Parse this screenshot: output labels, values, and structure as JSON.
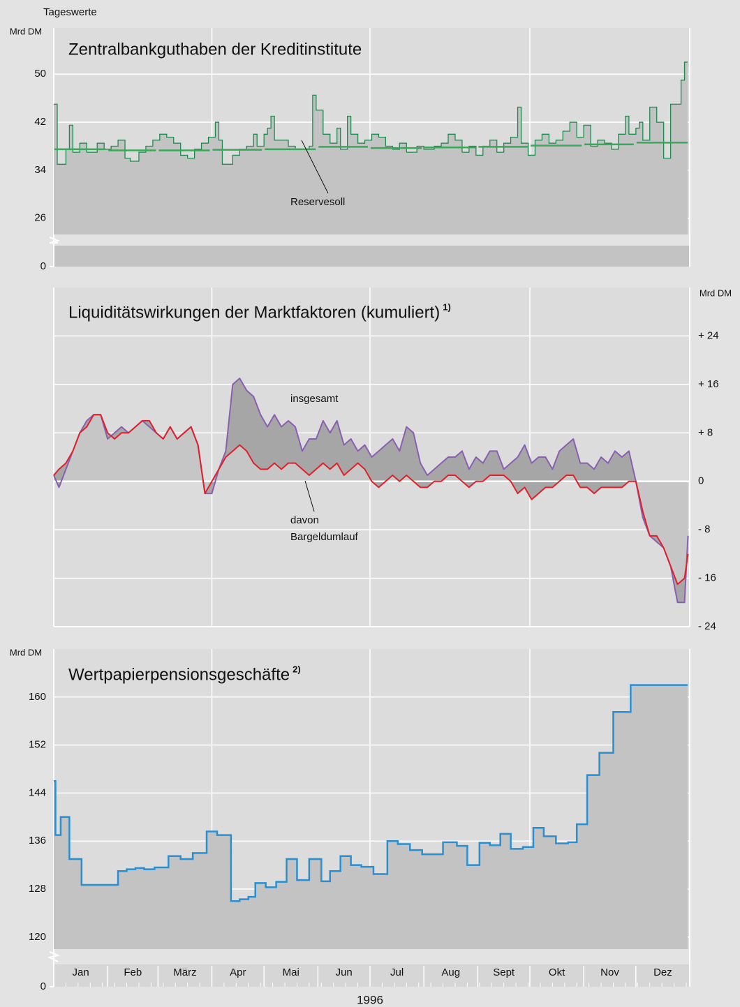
{
  "header": "Tageswerte",
  "chart_data": [
    {
      "type": "line",
      "step": true,
      "fill": true,
      "axis_break": true,
      "title": "Zentralbankguthaben der Kreditinstitute",
      "ylabel": "Mrd DM",
      "xlim": [
        1,
        367
      ],
      "ylim": [
        23.3,
        57.7
      ],
      "yticks": [
        0,
        26,
        34,
        42,
        50
      ],
      "grid": true,
      "series": [
        {
          "color": "#1f8a50",
          "x": [
            1,
            3,
            8,
            10,
            12,
            16,
            20,
            26,
            30,
            34,
            38,
            42,
            45,
            50,
            54,
            58,
            62,
            66,
            70,
            74,
            78,
            82,
            86,
            90,
            94,
            96,
            98,
            104,
            108,
            112,
            116,
            118,
            122,
            124,
            126,
            128,
            132,
            136,
            140,
            144,
            148,
            150,
            152,
            156,
            160,
            164,
            166,
            170,
            172,
            176,
            180,
            184,
            188,
            192,
            196,
            200,
            204,
            210,
            214,
            220,
            224,
            228,
            232,
            236,
            240,
            244,
            248,
            252,
            256,
            260,
            264,
            268,
            270,
            274,
            278,
            282,
            286,
            290,
            294,
            298,
            302,
            306,
            310,
            314,
            318,
            322,
            326,
            330,
            332,
            336,
            338,
            340,
            344,
            348,
            352,
            356,
            362,
            364
          ],
          "values": [
            45,
            35,
            37.5,
            41.5,
            37,
            38.5,
            37,
            38.5,
            37.5,
            38,
            39,
            36,
            35.5,
            37,
            38,
            39,
            40,
            39.5,
            38.5,
            36.5,
            36,
            37.5,
            38.5,
            39.5,
            42,
            39,
            35,
            36.5,
            37.5,
            38,
            40,
            38,
            40,
            41,
            43,
            39,
            39,
            38,
            37.5,
            37.5,
            38,
            46.5,
            44,
            40,
            38.5,
            41,
            37.5,
            43,
            40,
            38.5,
            39,
            40,
            39.5,
            38,
            37.5,
            38.5,
            37,
            38,
            37.5,
            38,
            38.5,
            40,
            39,
            37,
            38,
            36.5,
            38,
            39,
            37,
            38.5,
            39.5,
            44.5,
            38.5,
            36.5,
            39,
            40,
            38.5,
            39,
            40.5,
            42,
            39.5,
            41.5,
            38,
            39,
            38.5,
            37.5,
            40,
            43,
            40,
            41,
            42,
            39,
            44.5,
            42,
            36,
            45,
            49,
            52
          ]
        },
        {
          "name": "Reservesoll",
          "color": "#3aa85a",
          "style": "segments",
          "x": [
            1,
            32,
            61,
            92,
            122,
            153,
            183,
            214,
            245,
            275,
            306,
            336
          ],
          "values": [
            37.5,
            37.3,
            37.3,
            37.4,
            37.5,
            37.9,
            37.7,
            37.8,
            37.9,
            38.1,
            38.3,
            38.6
          ]
        }
      ]
    },
    {
      "type": "line",
      "fill": true,
      "title": "Liquiditätswirkungen der Marktfaktoren (kumuliert)",
      "title_note": "1)",
      "ylabel": "Mrd DM",
      "annotations": [
        "davon",
        "Bargeldumlauf"
      ],
      "xlim": [
        1,
        367
      ],
      "ylim": [
        -24,
        32
      ],
      "yticks": [
        {
          "value": -24,
          "label": "- 24"
        },
        {
          "value": -16,
          "label": "- 16"
        },
        {
          "value": -8,
          "label": "- 8"
        },
        0,
        {
          "value": 8,
          "label": "+ 8"
        },
        {
          "value": 16,
          "label": "+ 16"
        },
        {
          "value": 24,
          "label": "+ 24"
        }
      ],
      "grid": true,
      "series": [
        {
          "name": "insgesamt",
          "color": "#8a5fb0",
          "x": [
            1,
            4,
            8,
            12,
            16,
            20,
            24,
            28,
            32,
            36,
            40,
            44,
            48,
            52,
            56,
            60,
            64,
            68,
            72,
            76,
            80,
            84,
            88,
            92,
            96,
            100,
            104,
            108,
            112,
            116,
            120,
            124,
            128,
            132,
            136,
            140,
            144,
            148,
            152,
            156,
            160,
            164,
            168,
            172,
            176,
            180,
            184,
            188,
            192,
            196,
            200,
            204,
            208,
            212,
            216,
            220,
            224,
            228,
            232,
            236,
            240,
            244,
            248,
            252,
            256,
            260,
            264,
            268,
            272,
            276,
            280,
            284,
            288,
            292,
            296,
            300,
            304,
            308,
            312,
            316,
            320,
            324,
            328,
            332,
            336,
            340,
            344,
            348,
            352,
            356,
            360,
            364,
            366
          ],
          "values": [
            1,
            -1,
            2,
            5,
            8,
            10,
            11,
            11,
            7,
            8,
            9,
            8,
            9,
            10,
            9,
            8,
            7,
            9,
            7,
            8,
            9,
            6,
            -2,
            -2,
            2,
            5,
            16,
            17,
            15,
            14,
            11,
            9,
            11,
            9,
            10,
            9,
            5,
            7,
            7,
            10,
            8,
            10,
            6,
            7,
            5,
            6,
            4,
            5,
            6,
            7,
            5,
            9,
            8,
            3,
            1,
            2,
            3,
            4,
            4,
            5,
            2,
            4,
            3,
            5,
            5,
            2,
            3,
            4,
            6,
            3,
            4,
            4,
            2,
            5,
            6,
            7,
            3,
            3,
            2,
            4,
            3,
            5,
            4,
            5,
            0,
            -6,
            -9,
            -10,
            -11,
            -14,
            -20,
            -20,
            -9
          ]
        },
        {
          "color": "#e0202a",
          "x": [
            1,
            4,
            8,
            12,
            16,
            20,
            24,
            28,
            32,
            36,
            40,
            44,
            48,
            52,
            56,
            60,
            64,
            68,
            72,
            76,
            80,
            84,
            88,
            92,
            96,
            100,
            104,
            108,
            112,
            116,
            120,
            124,
            128,
            132,
            136,
            140,
            144,
            148,
            152,
            156,
            160,
            164,
            168,
            172,
            176,
            180,
            184,
            188,
            192,
            196,
            200,
            204,
            208,
            212,
            216,
            220,
            224,
            228,
            232,
            236,
            240,
            244,
            248,
            252,
            256,
            260,
            264,
            268,
            272,
            276,
            280,
            284,
            288,
            292,
            296,
            300,
            304,
            308,
            312,
            316,
            320,
            324,
            328,
            332,
            336,
            340,
            344,
            348,
            352,
            356,
            360,
            364,
            366
          ],
          "values": [
            1,
            2,
            3,
            5,
            8,
            9,
            11,
            11,
            8,
            7,
            8,
            8,
            9,
            10,
            10,
            8,
            7,
            9,
            7,
            8,
            9,
            6,
            -2,
            0,
            2,
            4,
            5,
            6,
            5,
            3,
            2,
            2,
            3,
            2,
            3,
            3,
            2,
            1,
            2,
            3,
            2,
            3,
            1,
            2,
            3,
            2,
            0,
            -1,
            0,
            1,
            0,
            1,
            0,
            -1,
            -1,
            0,
            0,
            1,
            1,
            0,
            -1,
            0,
            0,
            1,
            1,
            1,
            0,
            -2,
            -1,
            -3,
            -2,
            -1,
            -1,
            0,
            1,
            1,
            -1,
            -1,
            -2,
            -1,
            -1,
            -1,
            -1,
            0,
            0,
            -5,
            -9,
            -9,
            -11,
            -14,
            -17,
            -16,
            -12
          ]
        }
      ]
    },
    {
      "type": "line",
      "step": true,
      "fill": true,
      "axis_break": true,
      "title": "Wertpapierpensionsgeschäfte",
      "title_note": "2)",
      "ylabel": "Mrd DM",
      "xlabel": "1996",
      "xlim": [
        1,
        367
      ],
      "ylim": [
        118,
        168
      ],
      "yticks": [
        0,
        120,
        128,
        136,
        144,
        152,
        160
      ],
      "grid": true,
      "xticks": [
        {
          "value": 1,
          "label": "Jan"
        },
        {
          "value": 32,
          "label": "Feb"
        },
        {
          "value": 61,
          "label": "März"
        },
        {
          "value": 92,
          "label": "Apr"
        },
        {
          "value": 122,
          "label": "Mai"
        },
        {
          "value": 153,
          "label": "Jun"
        },
        {
          "value": 183,
          "label": "Jul"
        },
        {
          "value": 214,
          "label": "Aug"
        },
        {
          "value": 245,
          "label": "Sept"
        },
        {
          "value": 275,
          "label": "Okt"
        },
        {
          "value": 306,
          "label": "Nov"
        },
        {
          "value": 336,
          "label": "Dez"
        }
      ],
      "series": [
        {
          "color": "#2a8fd0",
          "x": [
            1,
            2,
            5,
            10,
            17,
            38,
            43,
            48,
            53,
            59,
            67,
            74,
            81,
            89,
            95,
            103,
            108,
            113,
            117,
            123,
            129,
            135,
            141,
            148,
            155,
            160,
            166,
            172,
            178,
            185,
            193,
            199,
            206,
            213,
            225,
            233,
            239,
            246,
            252,
            258,
            264,
            271,
            277,
            283,
            290,
            297,
            302,
            308,
            315,
            323,
            333
          ],
          "values": [
            146,
            137,
            140,
            133,
            128.7,
            131,
            131.3,
            131.5,
            131.3,
            131.6,
            133.5,
            133,
            134,
            137.6,
            137,
            126,
            126.3,
            126.7,
            129,
            128.3,
            129.2,
            133,
            129.5,
            133,
            129.3,
            131,
            133.5,
            132,
            131.7,
            130.5,
            136,
            135.5,
            134.5,
            133.8,
            135.8,
            135.2,
            132,
            135.7,
            135.3,
            137.2,
            134.7,
            135,
            138.2,
            136.8,
            135.6,
            135.8,
            138.8,
            147,
            150.7,
            157.5,
            162
          ]
        }
      ]
    }
  ]
}
